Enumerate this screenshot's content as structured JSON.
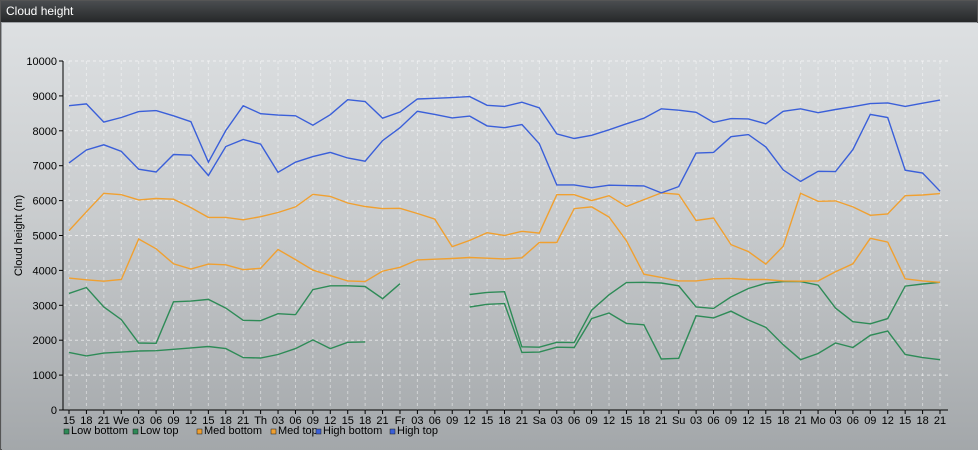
{
  "window": {
    "title": "Cloud height"
  },
  "chart_data": {
    "type": "line",
    "ylabel": "Cloud height (m)",
    "ylim": [
      0,
      10000
    ],
    "yticks": [
      0,
      1000,
      2000,
      3000,
      4000,
      5000,
      6000,
      7000,
      8000,
      9000,
      10000
    ],
    "grid": true,
    "legend_position": "bottom-left",
    "categories": [
      "15",
      "18",
      "21",
      "We",
      "03",
      "06",
      "09",
      "12",
      "15",
      "18",
      "21",
      "Th",
      "03",
      "06",
      "09",
      "12",
      "15",
      "18",
      "21",
      "Fr",
      "03",
      "06",
      "09",
      "12",
      "15",
      "18",
      "21",
      "Sa",
      "03",
      "06",
      "09",
      "12",
      "15",
      "18",
      "21",
      "Su",
      "03",
      "06",
      "09",
      "12",
      "15",
      "18",
      "21",
      "Mo",
      "03",
      "06",
      "09",
      "12",
      "15",
      "18",
      "21"
    ],
    "series": [
      {
        "name": "Low bottom",
        "color": "#2e8b57",
        "values": [
          1650,
          1550,
          1630,
          1660,
          1690,
          1700,
          1740,
          1780,
          1820,
          1760,
          1500,
          1490,
          1590,
          1760,
          2010,
          1760,
          1940,
          1950,
          null,
          null,
          null,
          null,
          null,
          2950,
          3030,
          3050,
          1650,
          1660,
          1800,
          1790,
          2620,
          2780,
          2480,
          2440,
          1460,
          1480,
          2700,
          2640,
          2830,
          2580,
          2370,
          1870,
          1440,
          1620,
          1920,
          1790,
          2140,
          2260,
          1590,
          1500,
          1440
        ]
      },
      {
        "name": "Low top",
        "color": "#2e8b57",
        "values": [
          3340,
          3510,
          2950,
          2590,
          1920,
          1910,
          3100,
          3120,
          3170,
          2920,
          2570,
          2560,
          2760,
          2730,
          3450,
          3560,
          3560,
          3540,
          3190,
          3620,
          null,
          null,
          null,
          3310,
          3370,
          3390,
          1810,
          1800,
          1940,
          1930,
          2860,
          3300,
          3650,
          3660,
          3640,
          3560,
          2950,
          2910,
          3240,
          3480,
          3630,
          3680,
          3680,
          3580,
          2920,
          2530,
          2470,
          2620,
          3550,
          3610,
          3660
        ]
      },
      {
        "name": "Med bottom",
        "color": "#f0a030",
        "values": [
          3780,
          3730,
          3690,
          3740,
          4900,
          4620,
          4190,
          4040,
          4180,
          4160,
          4020,
          4060,
          4600,
          4310,
          4010,
          3850,
          3700,
          3680,
          3980,
          4090,
          4300,
          4320,
          4340,
          4370,
          4350,
          4330,
          4360,
          4800,
          4800,
          5770,
          5820,
          5530,
          4850,
          3890,
          3800,
          3700,
          3700,
          3760,
          3770,
          3740,
          3740,
          3700,
          3690,
          3700,
          3960,
          4190,
          4920,
          4810,
          3760,
          3700,
          3660
        ]
      },
      {
        "name": "Med top",
        "color": "#f0a030",
        "values": [
          5140,
          5680,
          6210,
          6170,
          6020,
          6060,
          6040,
          5800,
          5520,
          5520,
          5450,
          5540,
          5660,
          5820,
          6180,
          6120,
          5930,
          5830,
          5770,
          5780,
          5630,
          5470,
          4680,
          4860,
          5080,
          5000,
          5120,
          5070,
          6170,
          6170,
          6000,
          6140,
          5830,
          6030,
          6220,
          6180,
          5430,
          5500,
          4740,
          4540,
          4180,
          4690,
          6210,
          5980,
          5990,
          5820,
          5580,
          5620,
          6140,
          6160,
          6200
        ]
      },
      {
        "name": "High bottom",
        "color": "#3a5fd9",
        "values": [
          7080,
          7450,
          7600,
          7410,
          6900,
          6820,
          7320,
          7300,
          6720,
          7550,
          7750,
          7620,
          6810,
          7100,
          7260,
          7380,
          7220,
          7130,
          7720,
          8090,
          8560,
          8470,
          8370,
          8420,
          8140,
          8090,
          8180,
          7630,
          6450,
          6450,
          6370,
          6440,
          6430,
          6420,
          6220,
          6400,
          7360,
          7380,
          7830,
          7890,
          7540,
          6880,
          6550,
          6840,
          6830,
          7460,
          8470,
          8380,
          6870,
          6790,
          6270
        ]
      },
      {
        "name": "High top",
        "color": "#3a5fd9",
        "values": [
          8720,
          8770,
          8250,
          8380,
          8550,
          8580,
          8430,
          8260,
          7100,
          8010,
          8720,
          8490,
          8450,
          8430,
          8160,
          8460,
          8890,
          8840,
          8360,
          8540,
          8910,
          8930,
          8950,
          8980,
          8730,
          8700,
          8820,
          8660,
          7910,
          7780,
          7870,
          8030,
          8200,
          8360,
          8630,
          8590,
          8530,
          8240,
          8350,
          8340,
          8200,
          8560,
          8630,
          8520,
          8610,
          8690,
          8780,
          8800,
          8700,
          8790,
          8880
        ]
      }
    ]
  }
}
